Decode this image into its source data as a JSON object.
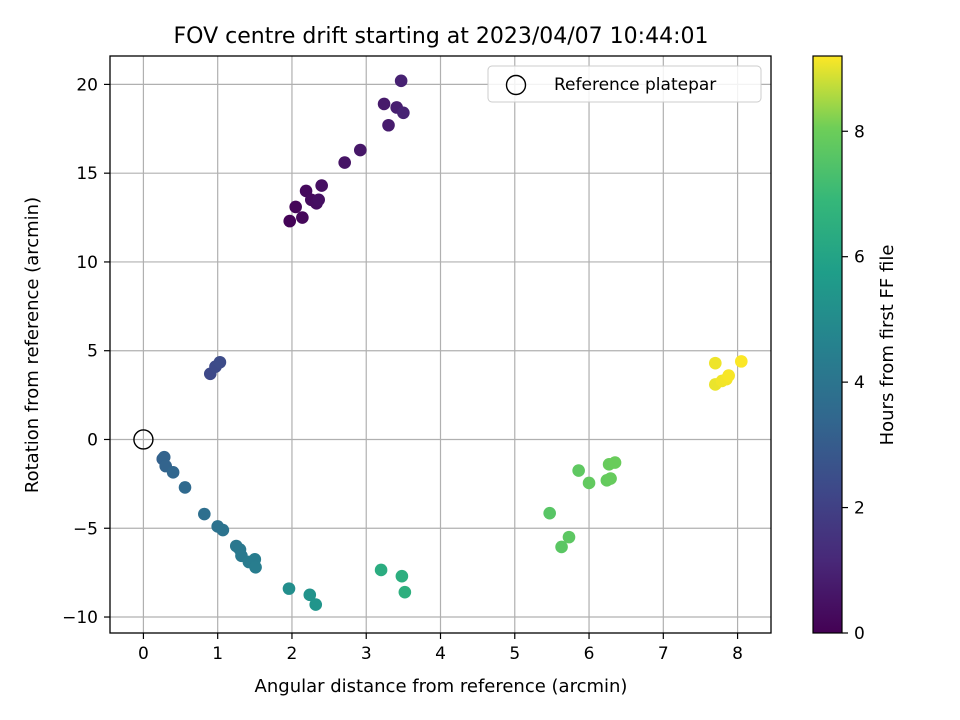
{
  "chart_data": {
    "type": "scatter",
    "title": "FOV centre drift starting at 2023/04/07 10:44:01",
    "xlabel": "Angular distance from reference (arcmin)",
    "ylabel": "Rotation from reference (arcmin)",
    "xlim": [
      -0.45,
      8.45
    ],
    "ylim": [
      -10.9,
      21.6
    ],
    "xticks": [
      0,
      1,
      2,
      3,
      4,
      5,
      6,
      7,
      8
    ],
    "yticks": [
      -10,
      -5,
      0,
      5,
      10,
      15,
      20
    ],
    "xtick_labels": [
      "0",
      "1",
      "2",
      "3",
      "4",
      "5",
      "6",
      "7",
      "8"
    ],
    "ytick_labels": [
      "−10",
      "−5",
      "0",
      "5",
      "10",
      "15",
      "20"
    ],
    "grid": true,
    "legend": {
      "placement": "top-right",
      "entries": [
        "Reference platepar"
      ]
    },
    "reference_point": {
      "x": 0,
      "y": 0,
      "marker": "open-circle",
      "color": "#000000"
    },
    "colorbar": {
      "label": "Hours from first FF file",
      "colormap": "viridis",
      "range": [
        0,
        9.2
      ],
      "ticks": [
        0,
        2,
        4,
        6,
        8
      ],
      "tick_labels": [
        "0",
        "2",
        "4",
        "6",
        "8"
      ]
    },
    "series": [
      {
        "marker": "filled-circle",
        "points": [
          {
            "x": 1.97,
            "y": 12.3,
            "t": 0.1
          },
          {
            "x": 2.05,
            "y": 13.1,
            "t": 0.15
          },
          {
            "x": 2.14,
            "y": 12.5,
            "t": 0.2
          },
          {
            "x": 2.19,
            "y": 14.0,
            "t": 0.25
          },
          {
            "x": 2.26,
            "y": 13.5,
            "t": 0.3
          },
          {
            "x": 2.33,
            "y": 13.3,
            "t": 0.35
          },
          {
            "x": 2.36,
            "y": 13.5,
            "t": 0.4
          },
          {
            "x": 2.4,
            "y": 14.3,
            "t": 0.45
          },
          {
            "x": 2.71,
            "y": 15.6,
            "t": 0.55
          },
          {
            "x": 2.92,
            "y": 16.3,
            "t": 0.65
          },
          {
            "x": 3.24,
            "y": 18.9,
            "t": 0.75
          },
          {
            "x": 3.3,
            "y": 17.7,
            "t": 0.8
          },
          {
            "x": 3.41,
            "y": 18.7,
            "t": 0.85
          },
          {
            "x": 3.47,
            "y": 20.2,
            "t": 0.95
          },
          {
            "x": 3.5,
            "y": 18.4,
            "t": 1.0
          },
          {
            "x": 0.9,
            "y": 3.7,
            "t": 2.3
          },
          {
            "x": 0.97,
            "y": 4.1,
            "t": 2.35
          },
          {
            "x": 1.03,
            "y": 4.35,
            "t": 2.4
          },
          {
            "x": 0.26,
            "y": -1.1,
            "t": 3.2
          },
          {
            "x": 0.28,
            "y": -1.0,
            "t": 3.25
          },
          {
            "x": 0.3,
            "y": -1.5,
            "t": 3.3
          },
          {
            "x": 0.4,
            "y": -1.85,
            "t": 3.4
          },
          {
            "x": 0.56,
            "y": -2.7,
            "t": 3.55
          },
          {
            "x": 0.82,
            "y": -4.2,
            "t": 3.75
          },
          {
            "x": 1.0,
            "y": -4.9,
            "t": 3.9
          },
          {
            "x": 1.07,
            "y": -5.1,
            "t": 3.95
          },
          {
            "x": 1.25,
            "y": -6.0,
            "t": 4.1
          },
          {
            "x": 1.3,
            "y": -6.2,
            "t": 4.15
          },
          {
            "x": 1.32,
            "y": -6.55,
            "t": 4.2
          },
          {
            "x": 1.42,
            "y": -6.9,
            "t": 4.3
          },
          {
            "x": 1.5,
            "y": -6.75,
            "t": 4.35
          },
          {
            "x": 1.51,
            "y": -7.2,
            "t": 4.4
          },
          {
            "x": 1.96,
            "y": -8.4,
            "t": 5.1
          },
          {
            "x": 2.24,
            "y": -8.75,
            "t": 5.3
          },
          {
            "x": 2.32,
            "y": -9.3,
            "t": 5.4
          },
          {
            "x": 3.2,
            "y": -7.35,
            "t": 6.4
          },
          {
            "x": 3.48,
            "y": -7.7,
            "t": 6.5
          },
          {
            "x": 3.52,
            "y": -8.6,
            "t": 6.55
          },
          {
            "x": 5.47,
            "y": -4.15,
            "t": 7.6
          },
          {
            "x": 5.63,
            "y": -6.05,
            "t": 7.65
          },
          {
            "x": 5.73,
            "y": -5.5,
            "t": 7.7
          },
          {
            "x": 5.86,
            "y": -1.75,
            "t": 7.75
          },
          {
            "x": 6.0,
            "y": -2.45,
            "t": 7.8
          },
          {
            "x": 6.24,
            "y": -2.3,
            "t": 7.85
          },
          {
            "x": 6.29,
            "y": -2.2,
            "t": 7.88
          },
          {
            "x": 6.27,
            "y": -1.4,
            "t": 7.9
          },
          {
            "x": 6.35,
            "y": -1.3,
            "t": 7.95
          },
          {
            "x": 7.7,
            "y": 3.1,
            "t": 9.05
          },
          {
            "x": 7.7,
            "y": 4.3,
            "t": 9.08
          },
          {
            "x": 7.79,
            "y": 3.3,
            "t": 9.1
          },
          {
            "x": 7.85,
            "y": 3.4,
            "t": 9.12
          },
          {
            "x": 7.88,
            "y": 3.6,
            "t": 9.15
          },
          {
            "x": 8.05,
            "y": 4.4,
            "t": 9.18
          }
        ]
      }
    ]
  }
}
